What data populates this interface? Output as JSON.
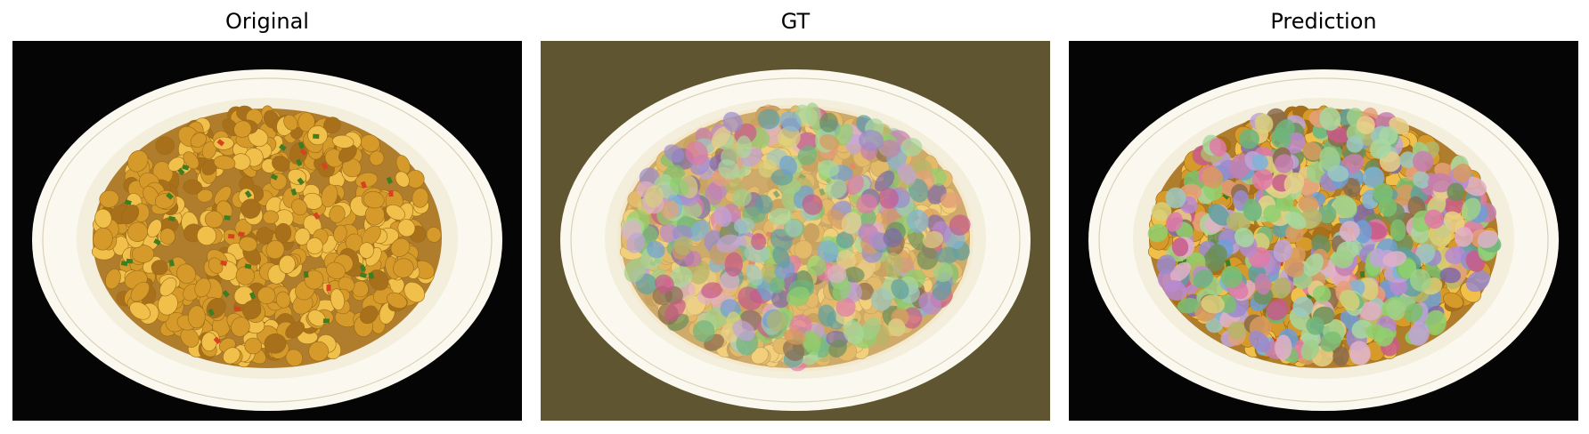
{
  "panels": [
    {
      "id": "original",
      "title": "Original",
      "variant": "original"
    },
    {
      "id": "gt",
      "title": "GT",
      "variant": "gt"
    },
    {
      "id": "prediction",
      "title": "Prediction",
      "variant": "prediction"
    }
  ],
  "colors": {
    "background_photo": "#050505",
    "gt_background_tint": "#5f5530",
    "plate_rim": "#fbf9ef",
    "plate_inner": "#f4efdc",
    "food_base": "#d59a2a",
    "food_highlight": "#f0c04a",
    "food_shadow": "#a8701a",
    "garnish_green": "#3e7d22",
    "garnish_red": "#d8431f"
  },
  "mask_palette": [
    "#9fd08a",
    "#8fd06e",
    "#c67fb0",
    "#7f6aa8",
    "#6d9fd6",
    "#e07aa8",
    "#9cc8c0",
    "#b5b56a",
    "#e6a07a",
    "#6fb57d",
    "#c0a4d8",
    "#8a6b4e",
    "#d8d07a",
    "#7fb3d8",
    "#c85a8a",
    "#a8d8a0",
    "#9a8acf",
    "#e0b0c8",
    "#6c8f5a",
    "#d89a60",
    "#5fa0a0",
    "#b88ad0",
    "#e8d08a",
    "#7ac070"
  ]
}
